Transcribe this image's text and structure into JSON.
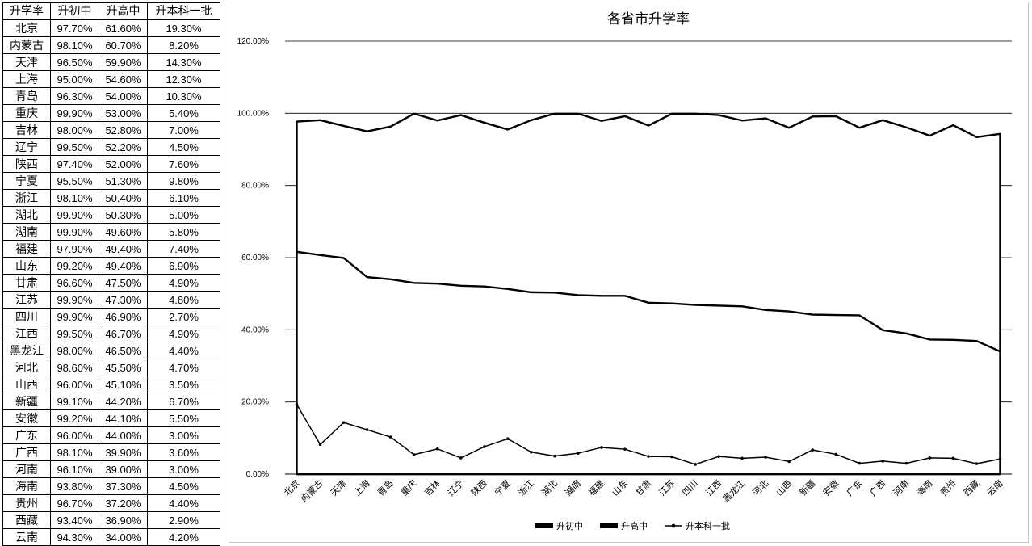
{
  "table": {
    "headers": [
      "升学率",
      "升初中",
      "升高中",
      "升本科一批"
    ],
    "rows": [
      [
        "北京",
        "97.70%",
        "61.60%",
        "19.30%"
      ],
      [
        "内蒙古",
        "98.10%",
        "60.70%",
        "8.20%"
      ],
      [
        "天津",
        "96.50%",
        "59.90%",
        "14.30%"
      ],
      [
        "上海",
        "95.00%",
        "54.60%",
        "12.30%"
      ],
      [
        "青岛",
        "96.30%",
        "54.00%",
        "10.30%"
      ],
      [
        "重庆",
        "99.90%",
        "53.00%",
        "5.40%"
      ],
      [
        "吉林",
        "98.00%",
        "52.80%",
        "7.00%"
      ],
      [
        "辽宁",
        "99.50%",
        "52.20%",
        "4.50%"
      ],
      [
        "陕西",
        "97.40%",
        "52.00%",
        "7.60%"
      ],
      [
        "宁夏",
        "95.50%",
        "51.30%",
        "9.80%"
      ],
      [
        "浙江",
        "98.10%",
        "50.40%",
        "6.10%"
      ],
      [
        "湖北",
        "99.90%",
        "50.30%",
        "5.00%"
      ],
      [
        "湖南",
        "99.90%",
        "49.60%",
        "5.80%"
      ],
      [
        "福建",
        "97.90%",
        "49.40%",
        "7.40%"
      ],
      [
        "山东",
        "99.20%",
        "49.40%",
        "6.90%"
      ],
      [
        "甘肃",
        "96.60%",
        "47.50%",
        "4.90%"
      ],
      [
        "江苏",
        "99.90%",
        "47.30%",
        "4.80%"
      ],
      [
        "四川",
        "99.90%",
        "46.90%",
        "2.70%"
      ],
      [
        "江西",
        "99.50%",
        "46.70%",
        "4.90%"
      ],
      [
        "黑龙江",
        "98.00%",
        "46.50%",
        "4.40%"
      ],
      [
        "河北",
        "98.60%",
        "45.50%",
        "4.70%"
      ],
      [
        "山西",
        "96.00%",
        "45.10%",
        "3.50%"
      ],
      [
        "新疆",
        "99.10%",
        "44.20%",
        "6.70%"
      ],
      [
        "安徽",
        "99.20%",
        "44.10%",
        "5.50%"
      ],
      [
        "广东",
        "96.00%",
        "44.00%",
        "3.00%"
      ],
      [
        "广西",
        "98.10%",
        "39.90%",
        "3.60%"
      ],
      [
        "河南",
        "96.10%",
        "39.00%",
        "3.00%"
      ],
      [
        "海南",
        "93.80%",
        "37.30%",
        "4.50%"
      ],
      [
        "贵州",
        "96.70%",
        "37.20%",
        "4.40%"
      ],
      [
        "西藏",
        "93.40%",
        "36.90%",
        "2.90%"
      ],
      [
        "云南",
        "94.30%",
        "34.00%",
        "4.20%"
      ]
    ]
  },
  "chart_data": {
    "type": "area",
    "title": "各省市升学率",
    "xlabel": "",
    "ylabel": "",
    "ylim": [
      0,
      1.2
    ],
    "y_ticks": [
      "0.00%",
      "20.00%",
      "40.00%",
      "60.00%",
      "80.00%",
      "100.00%",
      "120.00%"
    ],
    "y_tick_values": [
      0,
      0.2,
      0.4,
      0.6,
      0.8,
      1.0,
      1.2
    ],
    "grid": true,
    "legend_position": "bottom",
    "categories": [
      "北京",
      "内蒙古",
      "天津",
      "上海",
      "青岛",
      "重庆",
      "吉林",
      "辽宁",
      "陕西",
      "宁夏",
      "浙江",
      "湖北",
      "湖南",
      "福建",
      "山东",
      "甘肃",
      "江苏",
      "四川",
      "江西",
      "黑龙江",
      "河北",
      "山西",
      "新疆",
      "安徽",
      "广东",
      "广西",
      "河南",
      "海南",
      "贵州",
      "西藏",
      "云南"
    ],
    "series": [
      {
        "name": "升初中",
        "kind": "area",
        "values": [
          0.977,
          0.981,
          0.965,
          0.95,
          0.963,
          0.999,
          0.98,
          0.995,
          0.974,
          0.955,
          0.981,
          0.999,
          0.999,
          0.979,
          0.992,
          0.966,
          0.999,
          0.999,
          0.995,
          0.98,
          0.986,
          0.96,
          0.991,
          0.992,
          0.96,
          0.981,
          0.961,
          0.938,
          0.967,
          0.934,
          0.943
        ]
      },
      {
        "name": "升高中",
        "kind": "area",
        "values": [
          0.616,
          0.607,
          0.599,
          0.546,
          0.54,
          0.53,
          0.528,
          0.522,
          0.52,
          0.513,
          0.504,
          0.503,
          0.496,
          0.494,
          0.494,
          0.475,
          0.473,
          0.469,
          0.467,
          0.465,
          0.455,
          0.451,
          0.442,
          0.441,
          0.44,
          0.399,
          0.39,
          0.373,
          0.372,
          0.369,
          0.34
        ]
      },
      {
        "name": "升本科一批",
        "kind": "line",
        "values": [
          0.193,
          0.082,
          0.143,
          0.123,
          0.103,
          0.054,
          0.07,
          0.045,
          0.076,
          0.098,
          0.061,
          0.05,
          0.058,
          0.074,
          0.069,
          0.049,
          0.048,
          0.027,
          0.049,
          0.044,
          0.047,
          0.035,
          0.067,
          0.055,
          0.03,
          0.036,
          0.03,
          0.045,
          0.044,
          0.029,
          0.042
        ]
      }
    ]
  }
}
